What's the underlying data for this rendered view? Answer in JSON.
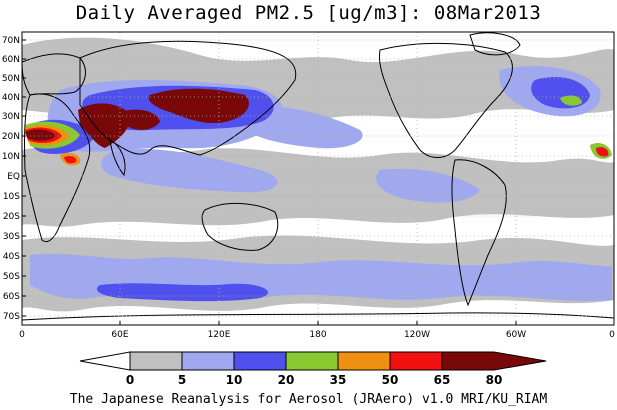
{
  "title": "Daily Averaged PM2.5 [ug/m3]: 08Mar2013",
  "credit": "The Japanese Reanalysis for Aerosol (JRAero) v1.0 MRI/KU_RIAM",
  "lat_labels": [
    "70N",
    "60N",
    "50N",
    "40N",
    "30N",
    "20N",
    "10N",
    "EQ",
    "10S",
    "20S",
    "30S",
    "40S",
    "50S",
    "60S",
    "70S"
  ],
  "lon_labels": [
    "0",
    "60E",
    "120E",
    "180",
    "120W",
    "60W",
    "0"
  ],
  "colorbar": {
    "levels": [
      "0",
      "5",
      "10",
      "20",
      "35",
      "50",
      "65",
      "80"
    ],
    "colors": [
      "#ffffff",
      "#c0c0c0",
      "#a0a8f0",
      "#5050ee",
      "#88c830",
      "#f09010",
      "#f01010",
      "#7a0808"
    ]
  }
}
